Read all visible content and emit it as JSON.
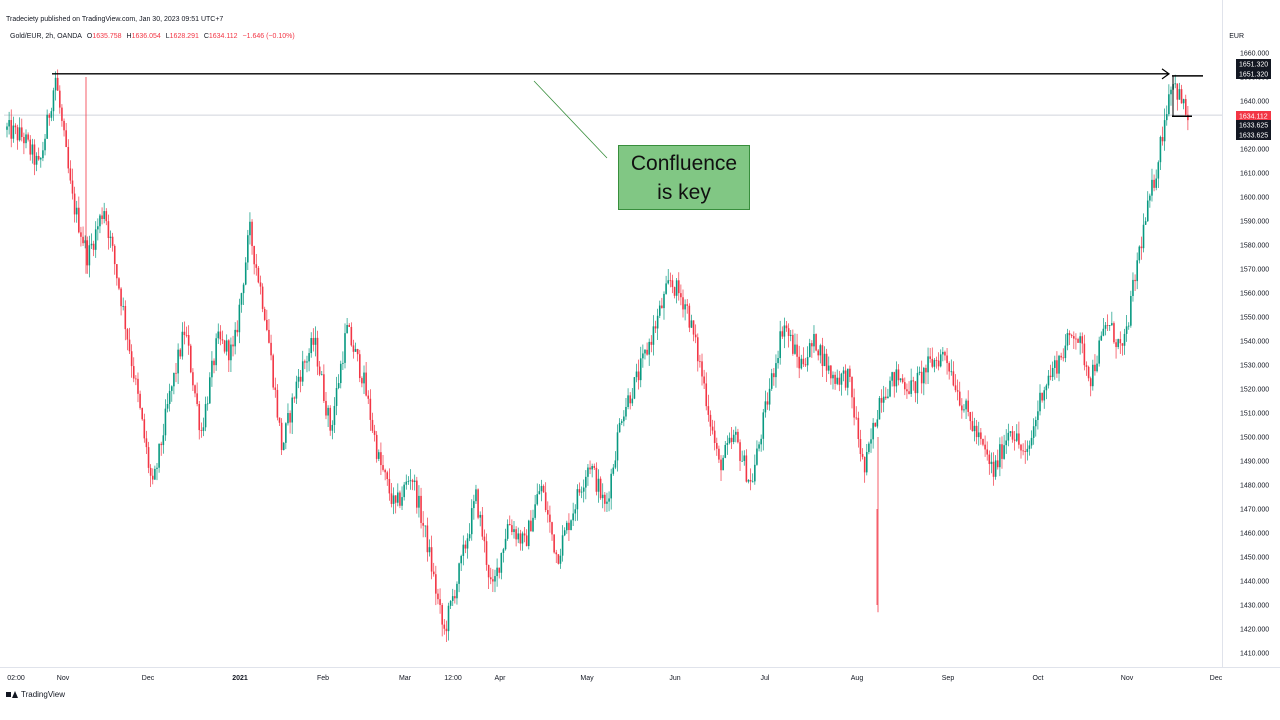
{
  "header": {
    "publisher": "Tradeciety published on TradingView.com, Jan 30, 2023 09:51 UTC+7",
    "symbol_interval": "Gold/EUR, 2h, OANDA",
    "ohlc": {
      "o_label": "O",
      "o_value": "1635.758",
      "h_label": "H",
      "h_value": "1636.054",
      "l_label": "L",
      "l_value": "1628.291",
      "c_label": "C",
      "c_value": "1634.112",
      "change": "−1.646 (−0.10%)"
    },
    "currency": "EUR"
  },
  "footer": {
    "brand": "TradingView"
  },
  "annotation": {
    "text": "Confluence\nis key"
  },
  "colors": {
    "up": "#089981",
    "down": "#f23645",
    "grid": "#f0f3fa",
    "line": "#000000",
    "last_price": "#f23645"
  },
  "chart_data": {
    "type": "candlestick",
    "y_axis": {
      "min": 1405,
      "max": 1665,
      "ticks": [
        "1660.000",
        "1650.000",
        "1640.000",
        "1630.000",
        "1620.000",
        "1610.000",
        "1600.000",
        "1590.000",
        "1580.000",
        "1570.000",
        "1560.000",
        "1550.000",
        "1540.000",
        "1530.000",
        "1520.000",
        "1510.000",
        "1500.000",
        "1490.000",
        "1480.000",
        "1470.000",
        "1460.000",
        "1450.000",
        "1440.000",
        "1430.000",
        "1420.000",
        "1410.000"
      ]
    },
    "x_axis": {
      "labels": [
        "02:00",
        "Nov",
        "Dec",
        "2021",
        "Feb",
        "Mar",
        "12:00",
        "Apr",
        "May",
        "Jun",
        "Jul",
        "Aug",
        "Sep",
        "Oct",
        "Nov",
        "Dec"
      ]
    },
    "price_labels": [
      {
        "text": "1651.320",
        "value": 1651.32,
        "style": "dark"
      },
      {
        "text": "1651.320",
        "value": 1651.32,
        "style": "dark"
      },
      {
        "text": "1634.112",
        "value": 1634.112,
        "style": "red"
      },
      {
        "text": "1633.625",
        "value": 1633.625,
        "style": "dark"
      },
      {
        "text": "1633.625",
        "value": 1633.625,
        "style": "dark"
      }
    ],
    "horizontal_lines": [
      {
        "value": 1651.32,
        "from_label": "Nov",
        "to_label": "Nov",
        "arrow": true
      },
      {
        "value": 1651.32,
        "short": true
      },
      {
        "value": 1633.625,
        "short": true
      }
    ],
    "path": [
      1628,
      1625,
      1612,
      1650,
      1600,
      1575,
      1596,
      1560,
      1520,
      1478,
      1515,
      1545,
      1502,
      1540,
      1535,
      1586,
      1550,
      1495,
      1525,
      1540,
      1503,
      1545,
      1525,
      1490,
      1470,
      1485,
      1455,
      1418,
      1445,
      1475,
      1435,
      1465,
      1455,
      1480,
      1450,
      1470,
      1490,
      1470,
      1510,
      1525,
      1545,
      1565,
      1555,
      1525,
      1488,
      1500,
      1480,
      1515,
      1548,
      1530,
      1540,
      1525,
      1525,
      1485,
      1518,
      1525,
      1520,
      1530,
      1535,
      1515,
      1500,
      1485,
      1505,
      1490,
      1520,
      1532,
      1545,
      1525,
      1548,
      1535,
      1578,
      1610,
      1650,
      1633
    ]
  }
}
